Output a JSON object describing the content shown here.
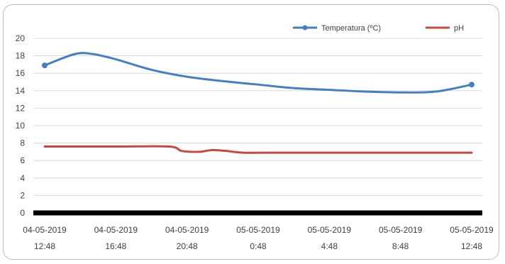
{
  "chart_data": {
    "type": "line",
    "title": "",
    "xlabel": "",
    "ylabel": "",
    "ylim": [
      0,
      20
    ],
    "yticks": [
      0,
      2,
      4,
      6,
      8,
      10,
      12,
      14,
      16,
      18,
      20
    ],
    "grid": true,
    "legend_position": "top-right",
    "x_ticks": [
      {
        "line1": "04-05-2019",
        "line2": "12:48"
      },
      {
        "line1": "04-05-2019",
        "line2": "16:48"
      },
      {
        "line1": "04-05-2019",
        "line2": "20:48"
      },
      {
        "line1": "05-05-2019",
        "line2": "0:48"
      },
      {
        "line1": "05-05-2019",
        "line2": "4:48"
      },
      {
        "line1": "05-05-2019",
        "line2": "8:48"
      },
      {
        "line1": "05-05-2019",
        "line2": "12:48"
      }
    ],
    "series": [
      {
        "name": "Temperatura (ºC)",
        "color": "#4a7ebb",
        "marker": "circle",
        "x_hours": [
          0,
          1.7,
          2.7,
          4,
          6,
          8,
          10,
          12,
          14,
          16,
          18,
          20,
          22,
          24
        ],
        "values": [
          16.9,
          18.2,
          18.2,
          17.6,
          16.4,
          15.6,
          15.1,
          14.7,
          14.3,
          14.1,
          13.9,
          13.8,
          13.9,
          14.7
        ],
        "marked_points": [
          0,
          13
        ]
      },
      {
        "name": "pH",
        "color": "#be4b48",
        "marker": "none",
        "x_hours": [
          0,
          4,
          7,
          7.7,
          8.7,
          9.4,
          10.2,
          11.2,
          13,
          24
        ],
        "values": [
          7.6,
          7.6,
          7.6,
          7.1,
          7.0,
          7.2,
          7.1,
          6.9,
          6.9,
          6.9
        ]
      }
    ],
    "baseline_color": "#000000",
    "gridline_color": "#d9d9d9"
  }
}
